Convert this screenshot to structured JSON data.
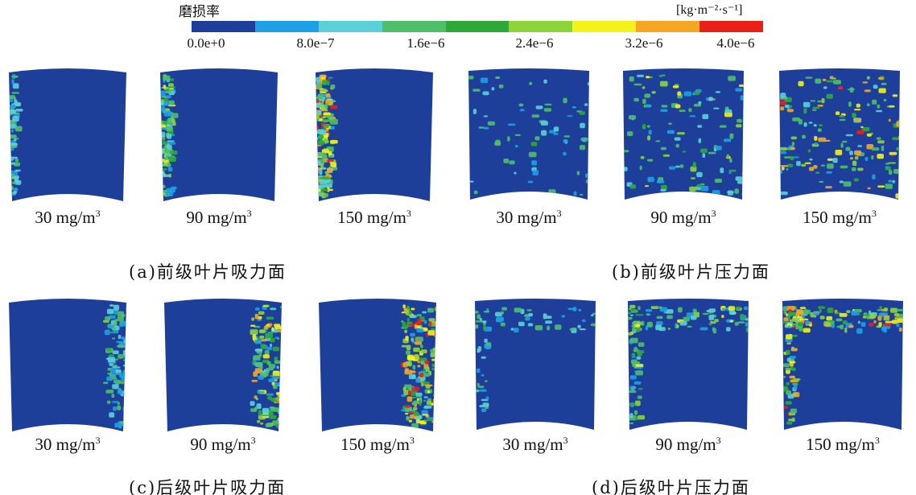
{
  "colorbar": {
    "title": "磨损率",
    "unit": "[kg·m⁻²·s⁻¹]",
    "ticks": [
      "0.0e+0",
      "8.0e−7",
      "1.6e−6",
      "2.4e−6",
      "3.2e−6",
      "4.0e−6"
    ],
    "colors": [
      "#1d3f9a",
      "#1ea0e6",
      "#5cd0d8",
      "#4fbf6a",
      "#2fa83a",
      "#8cd43a",
      "#f3f21a",
      "#f5a623",
      "#e8201a"
    ]
  },
  "panels": [
    {
      "caption": "(a)前级叶片吸力面",
      "blades": [
        {
          "label": "30 mg/m",
          "sup": "3",
          "level": 0.15
        },
        {
          "label": "90 mg/m",
          "sup": "3",
          "level": 0.55
        },
        {
          "label": "150 mg/m",
          "sup": "3",
          "level": 0.9
        }
      ]
    },
    {
      "caption": "(b)前级叶片压力面",
      "blades": [
        {
          "label": "30 mg/m",
          "sup": "3",
          "level": 0.2
        },
        {
          "label": "90 mg/m",
          "sup": "3",
          "level": 0.55
        },
        {
          "label": "150 mg/m",
          "sup": "3",
          "level": 0.85
        }
      ]
    },
    {
      "caption": "(c)后级叶片吸力面",
      "blades": [
        {
          "label": "30 mg/m",
          "sup": "3",
          "level": 0.35
        },
        {
          "label": "90 mg/m",
          "sup": "3",
          "level": 0.75
        },
        {
          "label": "150 mg/m",
          "sup": "3",
          "level": 0.95
        }
      ]
    },
    {
      "caption": "(d)后级叶片压力面",
      "blades": [
        {
          "label": "30 mg/m",
          "sup": "3",
          "level": 0.2
        },
        {
          "label": "90 mg/m",
          "sup": "3",
          "level": 0.6
        },
        {
          "label": "150 mg/m",
          "sup": "3",
          "level": 0.9
        }
      ]
    }
  ]
}
